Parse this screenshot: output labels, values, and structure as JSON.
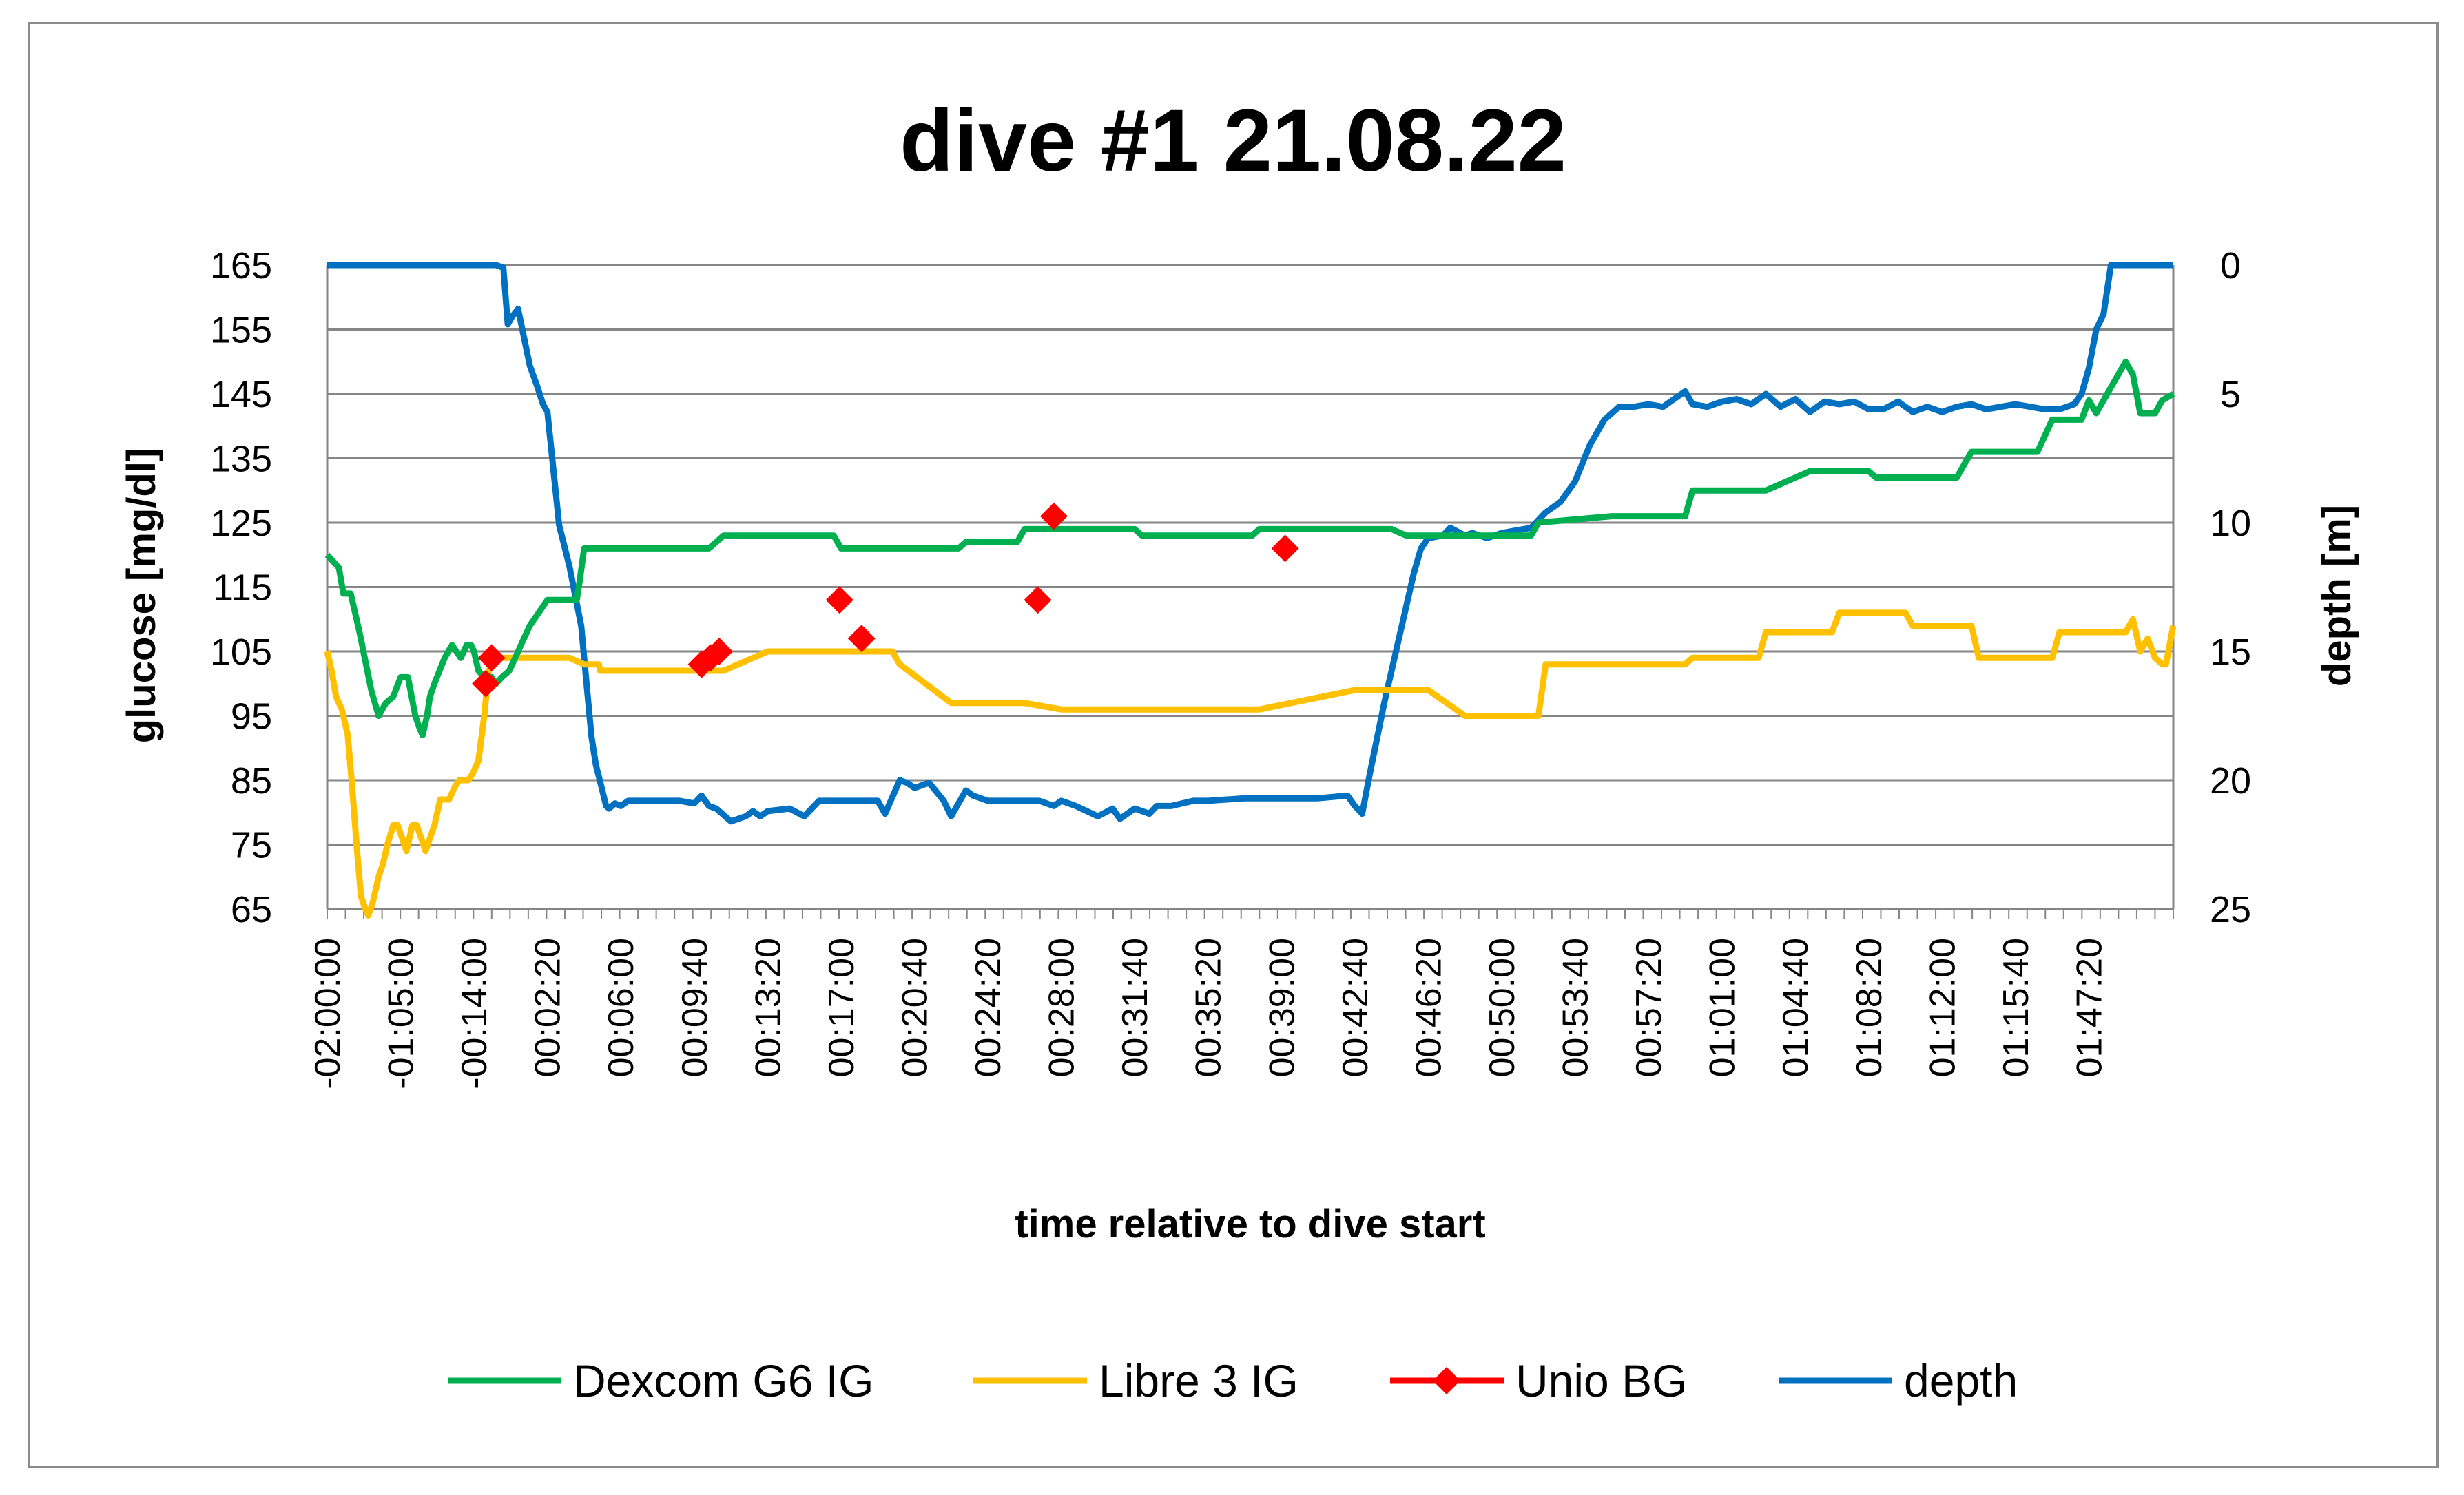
{
  "chart_data": {
    "type": "line",
    "title": "dive #1 21.08.22",
    "xlabel": "time relative to dive start",
    "ylabel": "glucose [mg/dl]",
    "y2label": "depth [m]",
    "ylim": [
      65,
      165
    ],
    "y_ticks": [
      "165",
      "155",
      "145",
      "135",
      "125",
      "115",
      "105",
      "95",
      "85",
      "75",
      "65"
    ],
    "y2lim": [
      0,
      25
    ],
    "y2_reversed": true,
    "y2_ticks": [
      "0",
      "5",
      "10",
      "15",
      "20",
      "25"
    ],
    "x_ticks": [
      "-02:00:00",
      "-01:05:00",
      "-00:14:00",
      "00:02:20",
      "00:06:00",
      "00:09:40",
      "00:13:20",
      "00:17:00",
      "00:20:40",
      "00:24:20",
      "00:28:00",
      "00:31:40",
      "00:35:20",
      "00:39:00",
      "00:42:40",
      "00:46:20",
      "00:50:00",
      "00:53:40",
      "00:57:20",
      "01:01:00",
      "01:04:40",
      "01:08:20",
      "01:12:00",
      "01:15:40",
      "01:47:20"
    ],
    "x_index_range": [
      0,
      24
    ],
    "grid": "horizontal",
    "legend_position": "bottom",
    "series": [
      {
        "name": "Dexcom G6 IG",
        "color": "#00b050",
        "axis": "left",
        "kind": "line",
        "x": [
          0,
          0.08,
          0.16,
          0.22,
          0.32,
          0.44,
          0.6,
          0.7,
          0.8,
          0.9,
          1.0,
          1.1,
          1.2,
          1.26,
          1.3,
          1.36,
          1.4,
          1.46,
          1.6,
          1.7,
          1.76,
          1.82,
          1.9,
          1.96,
          2.0,
          2.06,
          2.14,
          2.24,
          2.3,
          2.38,
          2.48,
          2.6,
          2.76,
          3.0,
          3.3,
          3.4,
          3.44,
          3.5,
          4.0,
          4.2,
          4.5,
          5.2,
          5.3,
          5.4,
          6.0,
          6.9,
          7.0,
          7.5,
          8.0,
          8.6,
          8.7,
          8.8,
          9.4,
          9.5,
          10.0,
          11.0,
          11.1,
          11.5,
          12.6,
          12.7,
          13.0,
          14.5,
          14.7,
          15.0,
          15.4,
          15.5,
          16.4,
          16.5,
          17.5,
          17.6,
          18.5,
          18.6,
          19.5,
          19.6,
          20.2,
          20.3,
          21.0,
          21.1,
          21.2,
          22.0,
          22.2,
          22.4,
          22.6,
          22.9,
          23.0,
          23.2,
          23.3,
          23.5,
          23.6,
          23.7,
          23.9,
          24.0,
          24.1,
          24.2,
          24.3,
          24.4,
          24.5,
          24.6,
          24.7,
          24.8,
          24.9,
          25.0,
          25.15
        ],
        "y": [
          120,
          119,
          118,
          114,
          114,
          108,
          99,
          95,
          97,
          98,
          101,
          101,
          95,
          93,
          92,
          95,
          98,
          100,
          104,
          106,
          105,
          104,
          106,
          106,
          105,
          102,
          101,
          101,
          100,
          101,
          102,
          105,
          109,
          113,
          113,
          113,
          116,
          121,
          121,
          121,
          121,
          121,
          122,
          123,
          123,
          123,
          121,
          121,
          121,
          121,
          122,
          122,
          122,
          124,
          124,
          124,
          123,
          123,
          123,
          124,
          124,
          124,
          123,
          123,
          123,
          123,
          123,
          125,
          126,
          126,
          126,
          130,
          130,
          130,
          133,
          133,
          133,
          132,
          132,
          132,
          132,
          136,
          136,
          136,
          136,
          136,
          136,
          141,
          141,
          141,
          141,
          144,
          142,
          144,
          146,
          148,
          150,
          148,
          142,
          142,
          142,
          144,
          145
        ]
      },
      {
        "name": "Libre 3 IG",
        "color": "#ffc000",
        "axis": "left",
        "kind": "line",
        "x": [
          0,
          0.06,
          0.12,
          0.2,
          0.28,
          0.34,
          0.4,
          0.46,
          0.52,
          0.56,
          0.62,
          0.7,
          0.76,
          0.82,
          0.9,
          0.96,
          1.02,
          1.08,
          1.16,
          1.22,
          1.28,
          1.34,
          1.4,
          1.46,
          1.54,
          1.6,
          1.66,
          1.74,
          1.8,
          1.86,
          1.92,
          1.98,
          2.06,
          2.14,
          2.2,
          2.3,
          2.38,
          2.46,
          2.54,
          2.62,
          2.7,
          2.76,
          2.8,
          2.9,
          3.1,
          3.3,
          3.5,
          3.7,
          3.72,
          4.5,
          5.0,
          5.1,
          5.2,
          5.4,
          6.0,
          6.5,
          6.6,
          6.7,
          7.0,
          7.5,
          7.7,
          7.8,
          8.5,
          9.0,
          9.5,
          10.0,
          10.2,
          10.3,
          11.0,
          11.5,
          11.6,
          12.5,
          12.6,
          12.7,
          14.0,
          14.5,
          15.0,
          15.5,
          15.6,
          16.0,
          16.5,
          16.6,
          17.5,
          17.6,
          18.5,
          18.6,
          19.5,
          19.6,
          20.5,
          20.6,
          21.5,
          21.6,
          22.0,
          22.4,
          22.5,
          22.6,
          23.5,
          23.6,
          24.0,
          24.3,
          24.5,
          24.6,
          24.7,
          24.8,
          24.9,
          25.0,
          25.05,
          25.15
        ],
        "y": [
          105,
          102,
          98,
          96,
          92,
          84,
          75,
          67,
          65,
          64,
          66,
          70,
          72,
          75,
          78,
          78,
          76,
          74,
          78,
          78,
          76,
          74,
          76,
          78,
          82,
          82,
          82,
          84,
          85,
          85,
          85,
          86,
          88,
          95,
          102,
          104,
          104,
          104,
          104,
          104,
          104,
          104,
          104,
          104,
          104,
          104,
          103,
          103,
          102,
          102,
          102,
          102,
          102,
          102,
          105,
          105,
          105,
          105,
          105,
          105,
          105,
          103,
          97,
          97,
          97,
          96,
          96,
          96,
          96,
          96,
          96,
          96,
          96,
          96,
          99,
          99,
          99,
          95,
          95,
          95,
          95,
          103,
          103,
          103,
          103,
          104,
          104,
          108,
          108,
          111,
          111,
          109,
          109,
          109,
          104,
          104,
          104,
          108,
          108,
          108,
          108,
          110,
          105,
          107,
          104,
          103,
          103,
          109
        ]
      },
      {
        "name": "Unio BG",
        "color": "#ff0000",
        "axis": "left",
        "kind": "markers",
        "x": [
          2.16,
          2.24,
          5.1,
          5.22,
          5.34,
          6.98,
          7.28,
          9.68,
          9.9,
          13.05
        ],
        "y": [
          100,
          104,
          103,
          104,
          105,
          113,
          107,
          113,
          126,
          121
        ]
      },
      {
        "name": "depth",
        "color": "#0070c0",
        "axis": "right",
        "kind": "line",
        "x": [
          0,
          2.3,
          2.4,
          2.46,
          2.52,
          2.6,
          2.68,
          2.76,
          2.86,
          2.94,
          3.0,
          3.08,
          3.16,
          3.3,
          3.46,
          3.6,
          3.66,
          3.74,
          3.8,
          3.84,
          3.92,
          4.0,
          4.1,
          4.2,
          4.4,
          4.6,
          4.8,
          5.0,
          5.1,
          5.2,
          5.3,
          5.5,
          5.7,
          5.8,
          5.9,
          6.0,
          6.3,
          6.5,
          6.7,
          6.9,
          7.0,
          7.5,
          7.6,
          7.8,
          7.9,
          8.0,
          8.2,
          8.4,
          8.5,
          8.7,
          8.8,
          9.0,
          9.2,
          9.5,
          9.7,
          9.9,
          10.0,
          10.2,
          10.5,
          10.7,
          10.8,
          11.0,
          11.2,
          11.3,
          11.5,
          11.8,
          12.0,
          12.5,
          13.0,
          13.5,
          13.9,
          14.0,
          14.1,
          14.2,
          14.4,
          14.6,
          14.8,
          14.9,
          15.0,
          15.2,
          15.3,
          15.5,
          15.6,
          15.8,
          16.0,
          16.2,
          16.4,
          16.6,
          16.8,
          17.0,
          17.2,
          17.4,
          17.6,
          17.8,
          18.0,
          18.2,
          18.4,
          18.5,
          18.6,
          18.8,
          19.0,
          19.2,
          19.4,
          19.6,
          19.8,
          20.0,
          20.2,
          20.4,
          20.6,
          20.8,
          21.0,
          21.2,
          21.4,
          21.6,
          21.8,
          22.0,
          22.2,
          22.4,
          22.6,
          22.8,
          23.0,
          23.2,
          23.4,
          23.6,
          23.8,
          23.9,
          24.0,
          24.1,
          24.2,
          24.3,
          24.6,
          25.15
        ],
        "y": [
          0,
          0,
          0.1,
          2.3,
          2.0,
          1.7,
          2.8,
          3.9,
          4.7,
          5.4,
          5.7,
          7.9,
          10.1,
          11.7,
          14.0,
          18.3,
          19.4,
          20.3,
          21.0,
          21.1,
          20.9,
          21.0,
          20.8,
          20.8,
          20.8,
          20.8,
          20.8,
          20.9,
          20.6,
          21.0,
          21.1,
          21.6,
          21.4,
          21.2,
          21.4,
          21.2,
          21.1,
          21.4,
          20.8,
          20.8,
          20.8,
          20.8,
          21.3,
          20.0,
          20.1,
          20.3,
          20.1,
          20.8,
          21.4,
          20.4,
          20.6,
          20.8,
          20.8,
          20.8,
          20.8,
          21.0,
          20.8,
          21.0,
          21.4,
          21.1,
          21.5,
          21.1,
          21.3,
          21.0,
          21.0,
          20.8,
          20.8,
          20.7,
          20.7,
          20.7,
          20.6,
          21.0,
          21.3,
          19.8,
          17.0,
          14.5,
          12.0,
          11.0,
          10.6,
          10.5,
          10.2,
          10.5,
          10.4,
          10.6,
          10.4,
          10.3,
          10.2,
          9.6,
          9.2,
          8.4,
          7.0,
          6.0,
          5.5,
          5.5,
          5.4,
          5.5,
          5.1,
          4.9,
          5.4,
          5.5,
          5.3,
          5.2,
          5.4,
          5.0,
          5.5,
          5.2,
          5.7,
          5.3,
          5.4,
          5.3,
          5.6,
          5.6,
          5.3,
          5.7,
          5.5,
          5.7,
          5.5,
          5.4,
          5.6,
          5.5,
          5.4,
          5.5,
          5.6,
          5.6,
          5.4,
          5.0,
          4.0,
          2.5,
          1.9,
          0,
          0,
          0
        ]
      }
    ]
  }
}
